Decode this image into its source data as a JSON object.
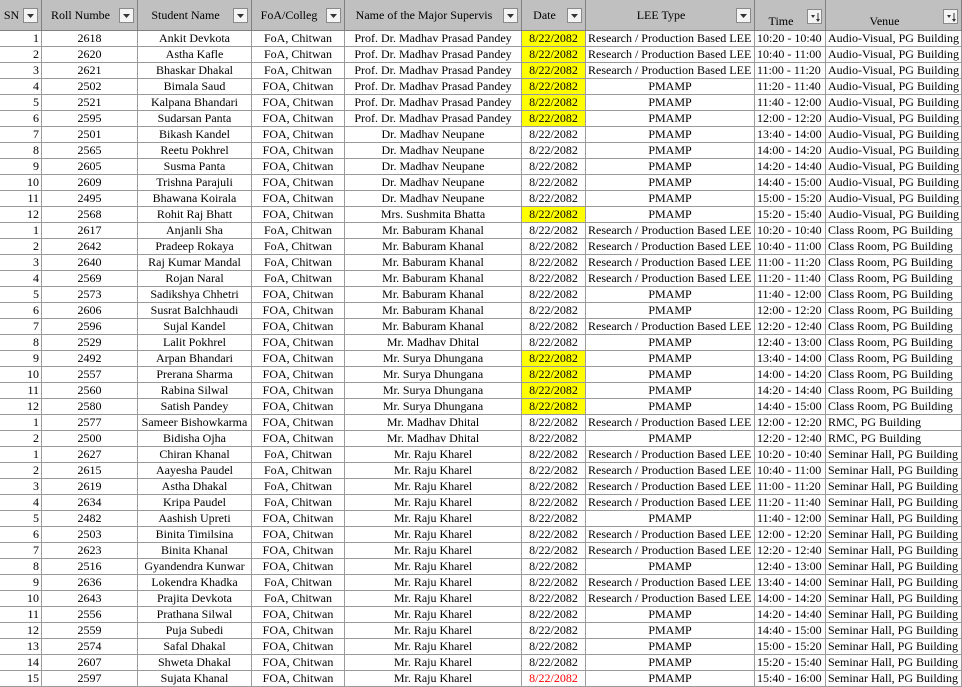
{
  "table": {
    "header": [
      "SN",
      "Roll Numbe",
      "Student Name",
      "FoA/Colleg",
      "Name of the Major Supervis",
      "Date",
      "LEE Type",
      "Time",
      "Venue"
    ],
    "rows": [
      {
        "cells": [
          1,
          2618,
          "Ankit Devkota",
          "FoA, Chitwan",
          "Prof. Dr. Madhav Prasad Pandey",
          "8/22/2082",
          "Research / Production Based LEE",
          "10:20 - 10:40",
          "Audio-Visual, PG Building"
        ],
        "date_fill": "#ffff00"
      },
      {
        "cells": [
          2,
          2620,
          "Astha Kafle",
          "FoA, Chitwan",
          "Prof. Dr. Madhav Prasad Pandey",
          "8/22/2082",
          "Research / Production Based LEE",
          "10:40 - 11:00",
          "Audio-Visual, PG Building"
        ],
        "date_fill": "#ffff00"
      },
      {
        "cells": [
          3,
          2621,
          "Bhaskar Dhakal",
          "FoA, Chitwan",
          "Prof. Dr. Madhav Prasad Pandey",
          "8/22/2082",
          "Research / Production Based LEE",
          "11:00 - 11:20",
          "Audio-Visual, PG Building"
        ],
        "date_fill": "#ffff00"
      },
      {
        "cells": [
          4,
          2502,
          "Bimala Saud",
          "FOA, Chitwan",
          "Prof. Dr. Madhav Prasad Pandey",
          "8/22/2082",
          "PMAMP",
          "11:20 - 11:40",
          "Audio-Visual, PG Building"
        ],
        "date_fill": "#ffff00"
      },
      {
        "cells": [
          5,
          2521,
          "Kalpana Bhandari",
          "FOA, Chitwan",
          "Prof. Dr. Madhav Prasad Pandey",
          "8/22/2082",
          "PMAMP",
          "11:40 - 12:00",
          "Audio-Visual, PG Building"
        ],
        "date_fill": "#ffff00"
      },
      {
        "cells": [
          6,
          2595,
          "Sudarsan Panta",
          "FOA, Chitwan",
          "Prof. Dr. Madhav Prasad Pandey",
          "8/22/2082",
          "PMAMP",
          "12:00 - 12:20",
          "Audio-Visual, PG Building"
        ],
        "date_fill": "#ffff00"
      },
      {
        "cells": [
          7,
          2501,
          "Bikash Kandel",
          "FOA, Chitwan",
          "Dr. Madhav Neupane",
          "8/22/2082",
          "PMAMP",
          "13:40 - 14:00",
          "Audio-Visual, PG Building"
        ]
      },
      {
        "cells": [
          8,
          2565,
          "Reetu Pokhrel",
          "FOA, Chitwan",
          "Dr. Madhav Neupane",
          "8/22/2082",
          "PMAMP",
          "14:00 - 14:20",
          "Audio-Visual, PG Building"
        ]
      },
      {
        "cells": [
          9,
          2605,
          "Susma Panta",
          "FOA, Chitwan",
          "Dr. Madhav Neupane",
          "8/22/2082",
          "PMAMP",
          "14:20 - 14:40",
          "Audio-Visual, PG Building"
        ]
      },
      {
        "cells": [
          10,
          2609,
          "Trishna Parajuli",
          "FOA, Chitwan",
          "Dr. Madhav Neupane",
          "8/22/2082",
          "PMAMP",
          "14:40 - 15:00",
          "Audio-Visual, PG Building"
        ]
      },
      {
        "cells": [
          11,
          2495,
          "Bhawana  Koirala",
          "FOA, Chitwan",
          "Dr. Madhav Neupane",
          "8/22/2082",
          "PMAMP",
          "15:00 - 15:20",
          "Audio-Visual, PG Building"
        ]
      },
      {
        "cells": [
          12,
          2568,
          "Rohit Raj Bhatt",
          "FOA, Chitwan",
          "Mrs. Sushmita Bhatta",
          "8/22/2082",
          "PMAMP",
          "15:20 - 15:40",
          "Audio-Visual, PG Building"
        ],
        "date_fill": "#ffff00"
      },
      {
        "cells": [
          1,
          2617,
          "Anjanli Sha",
          "FoA, Chitwan",
          "Mr. Baburam Khanal",
          "8/22/2082",
          "Research / Production Based LEE",
          "10:20 - 10:40",
          "Class Room, PG Building"
        ]
      },
      {
        "cells": [
          2,
          2642,
          "Pradeep Rokaya",
          "FoA, Chitwan",
          "Mr. Baburam Khanal",
          "8/22/2082",
          "Research / Production Based LEE",
          "10:40 - 11:00",
          "Class Room, PG Building"
        ]
      },
      {
        "cells": [
          3,
          2640,
          "Raj Kumar Mandal",
          "FoA, Chitwan",
          "Mr. Baburam Khanal",
          "8/22/2082",
          "Research / Production Based LEE",
          "11:00 - 11:20",
          "Class Room, PG Building"
        ]
      },
      {
        "cells": [
          4,
          2569,
          "Rojan Naral",
          "FoA, Chitwan",
          "Mr. Baburam Khanal",
          "8/22/2082",
          "Research / Production Based LEE",
          "11:20 - 11:40",
          "Class Room, PG Building"
        ]
      },
      {
        "cells": [
          5,
          2573,
          "Sadikshya Chhetri",
          "FOA, Chitwan",
          "Mr. Baburam Khanal",
          "8/22/2082",
          "PMAMP",
          "11:40 - 12:00",
          "Class Room, PG Building"
        ]
      },
      {
        "cells": [
          6,
          2606,
          "Susrat Balchhaudi",
          "FOA, Chitwan",
          "Mr. Baburam Khanal",
          "8/22/2082",
          "PMAMP",
          "12:00 - 12:20",
          "Class Room, PG Building"
        ]
      },
      {
        "cells": [
          7,
          2596,
          "Sujal Kandel",
          "FOA, Chitwan",
          "Mr. Baburam Khanal",
          "8/22/2082",
          "Research / Production Based LEE",
          "12:20 - 12:40",
          "Class Room, PG Building"
        ]
      },
      {
        "cells": [
          8,
          2529,
          "Lalit Pokhrel",
          "FOA, Chitwan",
          "Mr. Madhav Dhital",
          "8/22/2082",
          "PMAMP",
          "12:40 - 13:00",
          "Class Room, PG Building"
        ]
      },
      {
        "cells": [
          9,
          2492,
          "Arpan Bhandari",
          "FOA, Chitwan",
          "Mr. Surya Dhungana",
          "8/22/2082",
          "PMAMP",
          "13:40 - 14:00",
          "Class Room, PG Building"
        ],
        "date_fill": "#ffff00"
      },
      {
        "cells": [
          10,
          2557,
          "Prerana Sharma",
          "FOA, Chitwan",
          "Mr. Surya Dhungana",
          "8/22/2082",
          "PMAMP",
          "14:00 - 14:20",
          "Class Room, PG Building"
        ],
        "date_fill": "#ffff00"
      },
      {
        "cells": [
          11,
          2560,
          "Rabina Silwal",
          "FOA, Chitwan",
          "Mr. Surya Dhungana",
          "8/22/2082",
          "PMAMP",
          "14:20 - 14:40",
          "Class Room, PG Building"
        ],
        "date_fill": "#ffff00"
      },
      {
        "cells": [
          12,
          2580,
          "Satish Pandey",
          "FOA, Chitwan",
          "Mr. Surya Dhungana",
          "8/22/2082",
          "PMAMP",
          "14:40 - 15:00",
          "Class Room, PG Building"
        ],
        "date_fill": "#ffff00"
      },
      {
        "cells": [
          1,
          2577,
          "Sameer Bishowkarma",
          "FOA, Chitwan",
          "Mr. Madhav Dhital",
          "8/22/2082",
          "Research / Production Based LEE",
          "12:00 - 12:20",
          "RMC, PG Building"
        ]
      },
      {
        "cells": [
          2,
          2500,
          "Bidisha Ojha",
          "FOA, Chitwan",
          "Mr. Madhav Dhital",
          "8/22/2082",
          "PMAMP",
          "12:20 - 12:40",
          "RMC, PG Building"
        ]
      },
      {
        "cells": [
          1,
          2627,
          "Chiran Khanal",
          "FoA, Chitwan",
          "Mr. Raju Kharel",
          "8/22/2082",
          "Research / Production Based LEE",
          "10:20 - 10:40",
          "Seminar Hall, PG Building"
        ]
      },
      {
        "cells": [
          2,
          2615,
          "Aayesha Paudel",
          "FoA, Chitwan",
          "Mr. Raju Kharel",
          "8/22/2082",
          "Research / Production Based LEE",
          "10:40 - 11:00",
          "Seminar Hall, PG Building"
        ]
      },
      {
        "cells": [
          3,
          2619,
          "Astha Dhakal",
          "FoA, Chitwan",
          "Mr. Raju Kharel",
          "8/22/2082",
          "Research / Production Based LEE",
          "11:00 - 11:20",
          "Seminar Hall, PG Building"
        ]
      },
      {
        "cells": [
          4,
          2634,
          "Kripa Paudel",
          "FoA, Chitwan",
          "Mr. Raju Kharel",
          "8/22/2082",
          "Research / Production Based LEE",
          "11:20 - 11:40",
          "Seminar Hall, PG Building"
        ]
      },
      {
        "cells": [
          5,
          2482,
          "Aashish Upreti",
          "FOA, Chitwan",
          "Mr. Raju Kharel",
          "8/22/2082",
          "PMAMP",
          "11:40 - 12:00",
          "Seminar Hall, PG Building"
        ]
      },
      {
        "cells": [
          6,
          2503,
          "Binita Timilsina",
          "FOA, Chitwan",
          "Mr. Raju Kharel",
          "8/22/2082",
          "Research / Production Based LEE",
          "12:00 - 12:20",
          "Seminar Hall, PG Building"
        ]
      },
      {
        "cells": [
          7,
          2623,
          "Binita Khanal",
          "FOA, Chitwan",
          "Mr. Raju Kharel",
          "8/22/2082",
          "Research / Production Based LEE",
          "12:20 - 12:40",
          "Seminar Hall, PG Building"
        ]
      },
      {
        "cells": [
          8,
          2516,
          "Gyandendra Kunwar",
          "FOA, Chitwan",
          "Mr. Raju Kharel",
          "8/22/2082",
          "PMAMP",
          "12:40 - 13:00",
          "Seminar Hall, PG Building"
        ]
      },
      {
        "cells": [
          9,
          2636,
          "Lokendra Khadka",
          "FoA, Chitwan",
          "Mr. Raju Kharel",
          "8/22/2082",
          "Research / Production Based LEE",
          "13:40 - 14:00",
          "Seminar Hall, PG Building"
        ]
      },
      {
        "cells": [
          10,
          2643,
          "Prajita Devkota",
          "FoA, Chitwan",
          "Mr. Raju Kharel",
          "8/22/2082",
          "Research / Production Based LEE",
          "14:00 - 14:20",
          "Seminar Hall, PG Building"
        ]
      },
      {
        "cells": [
          11,
          2556,
          "Prathana Silwal",
          "FOA, Chitwan",
          "Mr. Raju Kharel",
          "8/22/2082",
          "PMAMP",
          "14:20 - 14:40",
          "Seminar Hall, PG Building"
        ]
      },
      {
        "cells": [
          12,
          2559,
          "Puja Subedi",
          "FOA, Chitwan",
          "Mr. Raju Kharel",
          "8/22/2082",
          "PMAMP",
          "14:40 - 15:00",
          "Seminar Hall, PG Building"
        ]
      },
      {
        "cells": [
          13,
          2574,
          "Safal Dhakal",
          "FOA, Chitwan",
          "Mr. Raju Kharel",
          "8/22/2082",
          "PMAMP",
          "15:00 - 15:20",
          "Seminar Hall, PG Building"
        ]
      },
      {
        "cells": [
          14,
          2607,
          "Shweta Dhakal",
          "FOA, Chitwan",
          "Mr. Raju Kharel",
          "8/22/2082",
          "PMAMP",
          "15:20 - 15:40",
          "Seminar Hall, PG Building"
        ]
      },
      {
        "cells": [
          15,
          2597,
          "Sujata Khanal",
          "FOA, Chitwan",
          "Mr. Raju Kharel",
          "8/22/2082",
          "PMAMP",
          "15:40 - 16:00",
          "Seminar Hall, PG Building"
        ],
        "date_color": "#ff0000"
      }
    ]
  }
}
